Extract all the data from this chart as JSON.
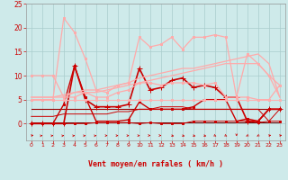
{
  "bg_color": "#ceeaea",
  "grid_color": "#aacccc",
  "xlabel": "Vent moyen/en rafales ( km/h )",
  "xlabel_color": "#cc0000",
  "tick_color": "#cc0000",
  "xlim": [
    -0.5,
    23.5
  ],
  "ylim": [
    -3.5,
    25
  ],
  "yticks": [
    0,
    5,
    10,
    15,
    20,
    25
  ],
  "xticks": [
    0,
    1,
    2,
    3,
    4,
    5,
    6,
    7,
    8,
    9,
    10,
    11,
    12,
    13,
    14,
    15,
    16,
    17,
    18,
    19,
    20,
    21,
    22,
    23
  ],
  "lines": [
    {
      "y": [
        0.2,
        0.2,
        0.2,
        0.2,
        0.2,
        0.2,
        0.2,
        0.2,
        0.2,
        0.2,
        0.2,
        0.2,
        0.2,
        0.2,
        0.2,
        0.2,
        0.2,
        0.2,
        0.2,
        0.2,
        0.2,
        0.2,
        0.2,
        0.2
      ],
      "color": "#660000",
      "lw": 0.7,
      "marker": null,
      "ms": 0
    },
    {
      "y": [
        0.0,
        0.0,
        0.0,
        0.0,
        0.0,
        0.0,
        0.2,
        0.2,
        0.2,
        0.2,
        0.0,
        0.2,
        0.0,
        0.0,
        0.0,
        0.5,
        0.5,
        0.5,
        0.5,
        0.5,
        0.5,
        0.2,
        0.5,
        0.5
      ],
      "color": "#cc0000",
      "lw": 0.7,
      "marker": "s",
      "ms": 2
    },
    {
      "y": [
        3.0,
        3.0,
        3.0,
        3.0,
        3.0,
        3.0,
        3.0,
        3.0,
        3.0,
        3.0,
        3.0,
        3.0,
        3.0,
        3.0,
        3.0,
        3.0,
        3.0,
        3.0,
        3.0,
        3.0,
        3.0,
        3.0,
        3.0,
        3.0
      ],
      "color": "#990000",
      "lw": 0.8,
      "marker": null,
      "ms": 0
    },
    {
      "y": [
        0.0,
        0.0,
        0.0,
        4.0,
        12.0,
        5.5,
        0.5,
        0.5,
        0.5,
        0.8,
        4.5,
        3.0,
        3.0,
        3.0,
        3.0,
        3.5,
        5.0,
        5.0,
        5.0,
        0.5,
        1.0,
        0.5,
        3.0,
        3.0
      ],
      "color": "#cc0000",
      "lw": 1.0,
      "marker": "s",
      "ms": 2
    },
    {
      "y": [
        1.5,
        1.5,
        1.5,
        2.0,
        2.0,
        2.0,
        2.0,
        2.0,
        2.5,
        2.5,
        3.0,
        3.0,
        3.5,
        3.5,
        3.5,
        3.0,
        3.0,
        3.0,
        3.0,
        3.0,
        3.0,
        3.0,
        0.5,
        3.0
      ],
      "color": "#cc0000",
      "lw": 0.7,
      "marker": null,
      "ms": 0
    },
    {
      "y": [
        0.0,
        0.0,
        0.0,
        0.0,
        12.0,
        5.0,
        3.5,
        3.5,
        3.5,
        4.0,
        11.5,
        7.0,
        7.5,
        9.0,
        9.5,
        7.5,
        8.0,
        7.5,
        5.5,
        5.5,
        0.5,
        0.5,
        3.0,
        3.0
      ],
      "color": "#cc0000",
      "lw": 1.2,
      "marker": "+",
      "ms": 4
    },
    {
      "y": [
        5.0,
        5.0,
        5.0,
        5.0,
        5.0,
        5.0,
        5.0,
        5.0,
        5.0,
        5.0,
        5.0,
        5.0,
        5.0,
        5.0,
        5.0,
        5.0,
        5.0,
        5.0,
        5.0,
        5.0,
        5.0,
        5.0,
        5.0,
        5.0
      ],
      "color": "#ffb0b0",
      "lw": 0.8,
      "marker": "s",
      "ms": 2
    },
    {
      "y": [
        5.5,
        5.5,
        5.5,
        6.0,
        6.5,
        7.0,
        7.0,
        7.5,
        8.0,
        8.5,
        9.5,
        10.0,
        10.5,
        11.0,
        11.5,
        11.5,
        12.0,
        12.5,
        13.0,
        13.5,
        14.0,
        14.5,
        12.5,
        5.5
      ],
      "color": "#ffaaaa",
      "lw": 0.9,
      "marker": null,
      "ms": 0
    },
    {
      "y": [
        5.5,
        5.5,
        5.5,
        5.5,
        6.5,
        6.5,
        6.5,
        7.0,
        7.5,
        8.0,
        8.5,
        9.0,
        9.5,
        10.0,
        10.5,
        11.0,
        11.5,
        12.0,
        12.5,
        12.5,
        12.5,
        12.5,
        10.0,
        5.5
      ],
      "color": "#ffaaaa",
      "lw": 0.9,
      "marker": null,
      "ms": 0
    },
    {
      "y": [
        10.0,
        10.0,
        10.0,
        5.5,
        5.5,
        6.5,
        5.5,
        5.5,
        6.5,
        7.0,
        8.5,
        8.5,
        8.0,
        8.5,
        8.5,
        8.5,
        8.0,
        8.5,
        5.5,
        5.5,
        5.5,
        5.0,
        5.0,
        8.0
      ],
      "color": "#ffaaaa",
      "lw": 0.9,
      "marker": "s",
      "ms": 2
    },
    {
      "y": [
        5.0,
        5.0,
        5.0,
        22.0,
        19.0,
        13.5,
        7.0,
        6.5,
        8.0,
        8.5,
        18.0,
        16.0,
        16.5,
        18.0,
        15.5,
        18.0,
        18.0,
        18.5,
        18.0,
        5.5,
        14.5,
        12.5,
        10.0,
        8.0
      ],
      "color": "#ffaaaa",
      "lw": 0.9,
      "marker": "s",
      "ms": 2
    }
  ],
  "arrow_color": "#cc0000",
  "arrow_angles": [
    225,
    247,
    247,
    247,
    247,
    247,
    247,
    270,
    270,
    270,
    270,
    292,
    292,
    315,
    315,
    315,
    315,
    337,
    337,
    0,
    22,
    22,
    225,
    225
  ]
}
